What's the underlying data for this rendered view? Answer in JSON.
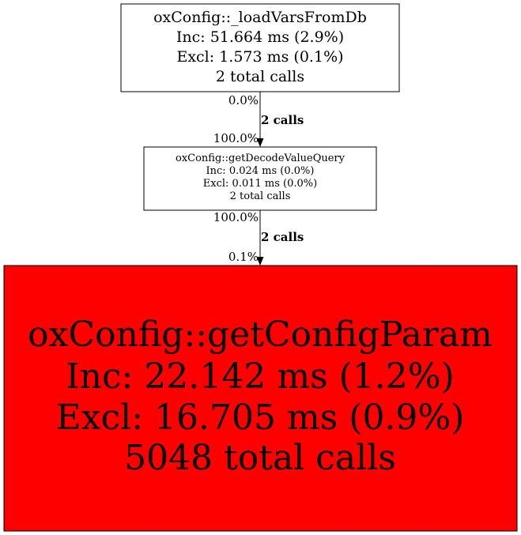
{
  "nodes": [
    {
      "id": "loadVarsFromDb",
      "lines": [
        "oxConfig::_loadVarsFromDb",
        "Inc: 51.664 ms (2.9%)",
        "Excl: 1.573 ms (0.1%)",
        "2 total calls"
      ],
      "fill": "#ffffff"
    },
    {
      "id": "getDecodeValueQuery",
      "lines": [
        "oxConfig::getDecodeValueQuery",
        "Inc: 0.024 ms (0.0%)",
        "Excl: 0.011 ms (0.0%)",
        "2 total calls"
      ],
      "fill": "#ffffff"
    },
    {
      "id": "getConfigParam",
      "lines": [
        "oxConfig::getConfigParam",
        "Inc: 22.142 ms (1.2%)",
        "Excl: 16.705 ms (0.9%)",
        "5048 total calls"
      ],
      "fill": "#ff0000"
    }
  ],
  "edges": [
    {
      "from": "loadVarsFromDb",
      "to": "getDecodeValueQuery",
      "tail_label": "0.0%",
      "label": "2 calls",
      "head_label": "100.0%"
    },
    {
      "from": "getDecodeValueQuery",
      "to": "getConfigParam",
      "tail_label": "100.0%",
      "label": "2 calls",
      "head_label": "0.1%"
    }
  ]
}
